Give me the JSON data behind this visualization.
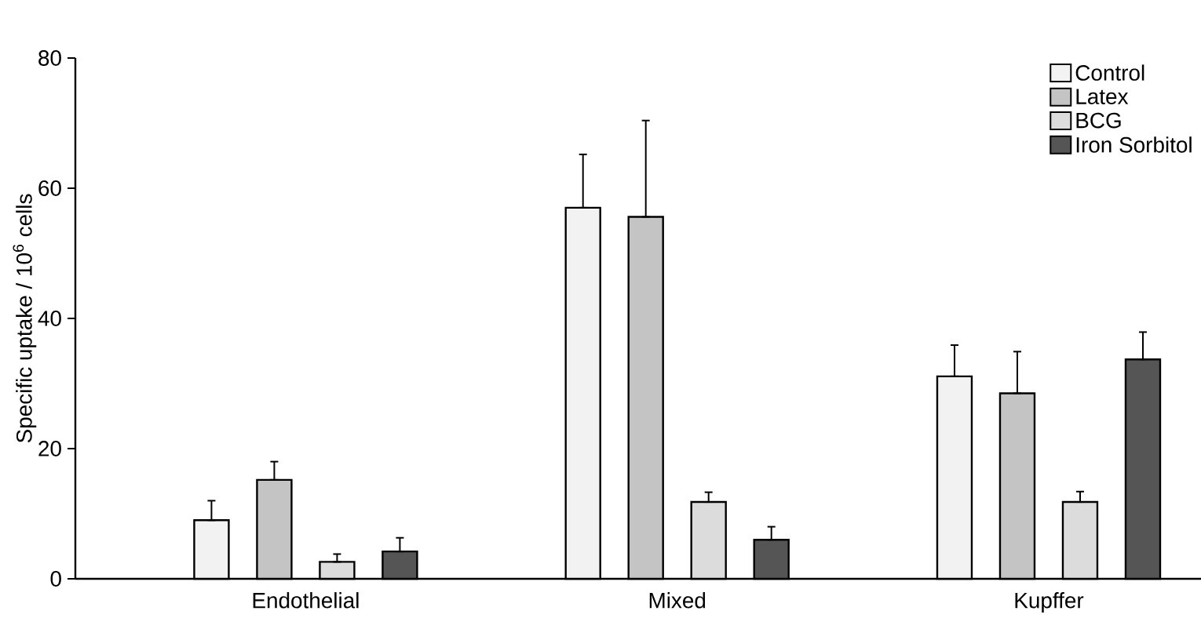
{
  "chart_data": {
    "type": "bar",
    "ylabel": "Specific uptake / 10$^{6}$ cells",
    "categories": [
      "Endothelial",
      "Mixed",
      "Kupffer"
    ],
    "series": [
      {
        "name": "Control",
        "color": "#f2f2f2",
        "values": [
          9.0,
          57.0,
          31.1
        ],
        "errors": [
          [
            9.0,
            12.0
          ],
          [
            57.0,
            65.2
          ],
          [
            31.1,
            35.9
          ]
        ]
      },
      {
        "name": "Latex",
        "color": "#c4c4c4",
        "values": [
          15.2,
          55.6,
          28.5
        ],
        "errors": [
          [
            15.2,
            18.0
          ],
          [
            55.6,
            70.4
          ],
          [
            28.5,
            34.9
          ]
        ]
      },
      {
        "name": "BCG",
        "color": "#dcdcdc",
        "values": [
          2.6,
          11.8,
          11.8
        ],
        "errors": [
          [
            2.6,
            3.8
          ],
          [
            11.8,
            13.3
          ],
          [
            11.8,
            13.4
          ]
        ]
      },
      {
        "name": "Iron Sorbitol",
        "color": "#555555",
        "values": [
          4.2,
          6.0,
          33.7
        ],
        "errors": [
          [
            4.2,
            6.3
          ],
          [
            6.0,
            8.0
          ],
          [
            33.7,
            37.9
          ]
        ]
      }
    ],
    "ylim": [
      0,
      80
    ],
    "yticks": [
      0,
      20,
      40,
      60,
      80
    ],
    "legend": "top right",
    "grid": false
  }
}
